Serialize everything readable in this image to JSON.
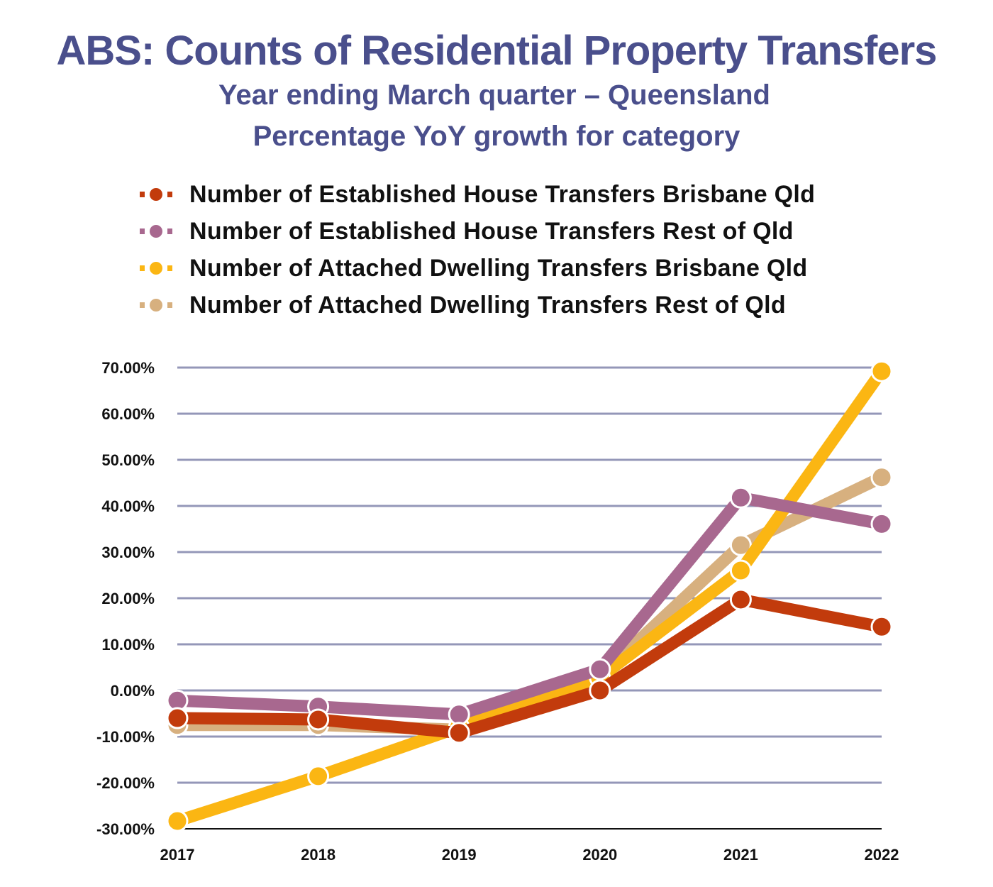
{
  "chart_data": {
    "type": "line",
    "title": "ABS: Counts of Residential Property Transfers",
    "subtitle": [
      "Year ending March quarter – Queensland",
      "Percentage YoY growth for category"
    ],
    "xlabel": "",
    "ylabel": "",
    "x": [
      "2017",
      "2018",
      "2019",
      "2020",
      "2021",
      "2022"
    ],
    "ylim": [
      -30,
      70
    ],
    "yticks": [
      "70.00%",
      "60.00%",
      "50.00%",
      "40.00%",
      "30.00%",
      "20.00%",
      "10.00%",
      "0.00%",
      "-10.00%",
      "-20.00%",
      "-30.00%"
    ],
    "grid": true,
    "legend_position": "top",
    "series": [
      {
        "name": "Number of Established House Transfers Brisbane Qld",
        "color": "#c23b0c",
        "values": [
          -6.0,
          -6.3,
          -9.2,
          0.0,
          19.7,
          13.8
        ]
      },
      {
        "name": "Number of Established House Transfers Rest of Qld",
        "color": "#a8688f",
        "values": [
          -2.2,
          -3.5,
          -5.2,
          4.6,
          41.8,
          36.1
        ]
      },
      {
        "name": "Number of Attached Dwelling Transfers Brisbane Qld",
        "color": "#fbb613",
        "values": [
          -28.3,
          -18.6,
          -8.0,
          2.8,
          26.0,
          69.2
        ]
      },
      {
        "name": "Number of Attached Dwelling Transfers Rest of Qld",
        "color": "#d7b07f",
        "values": [
          -7.5,
          -7.5,
          -8.5,
          3.0,
          31.5,
          46.2
        ]
      }
    ]
  }
}
